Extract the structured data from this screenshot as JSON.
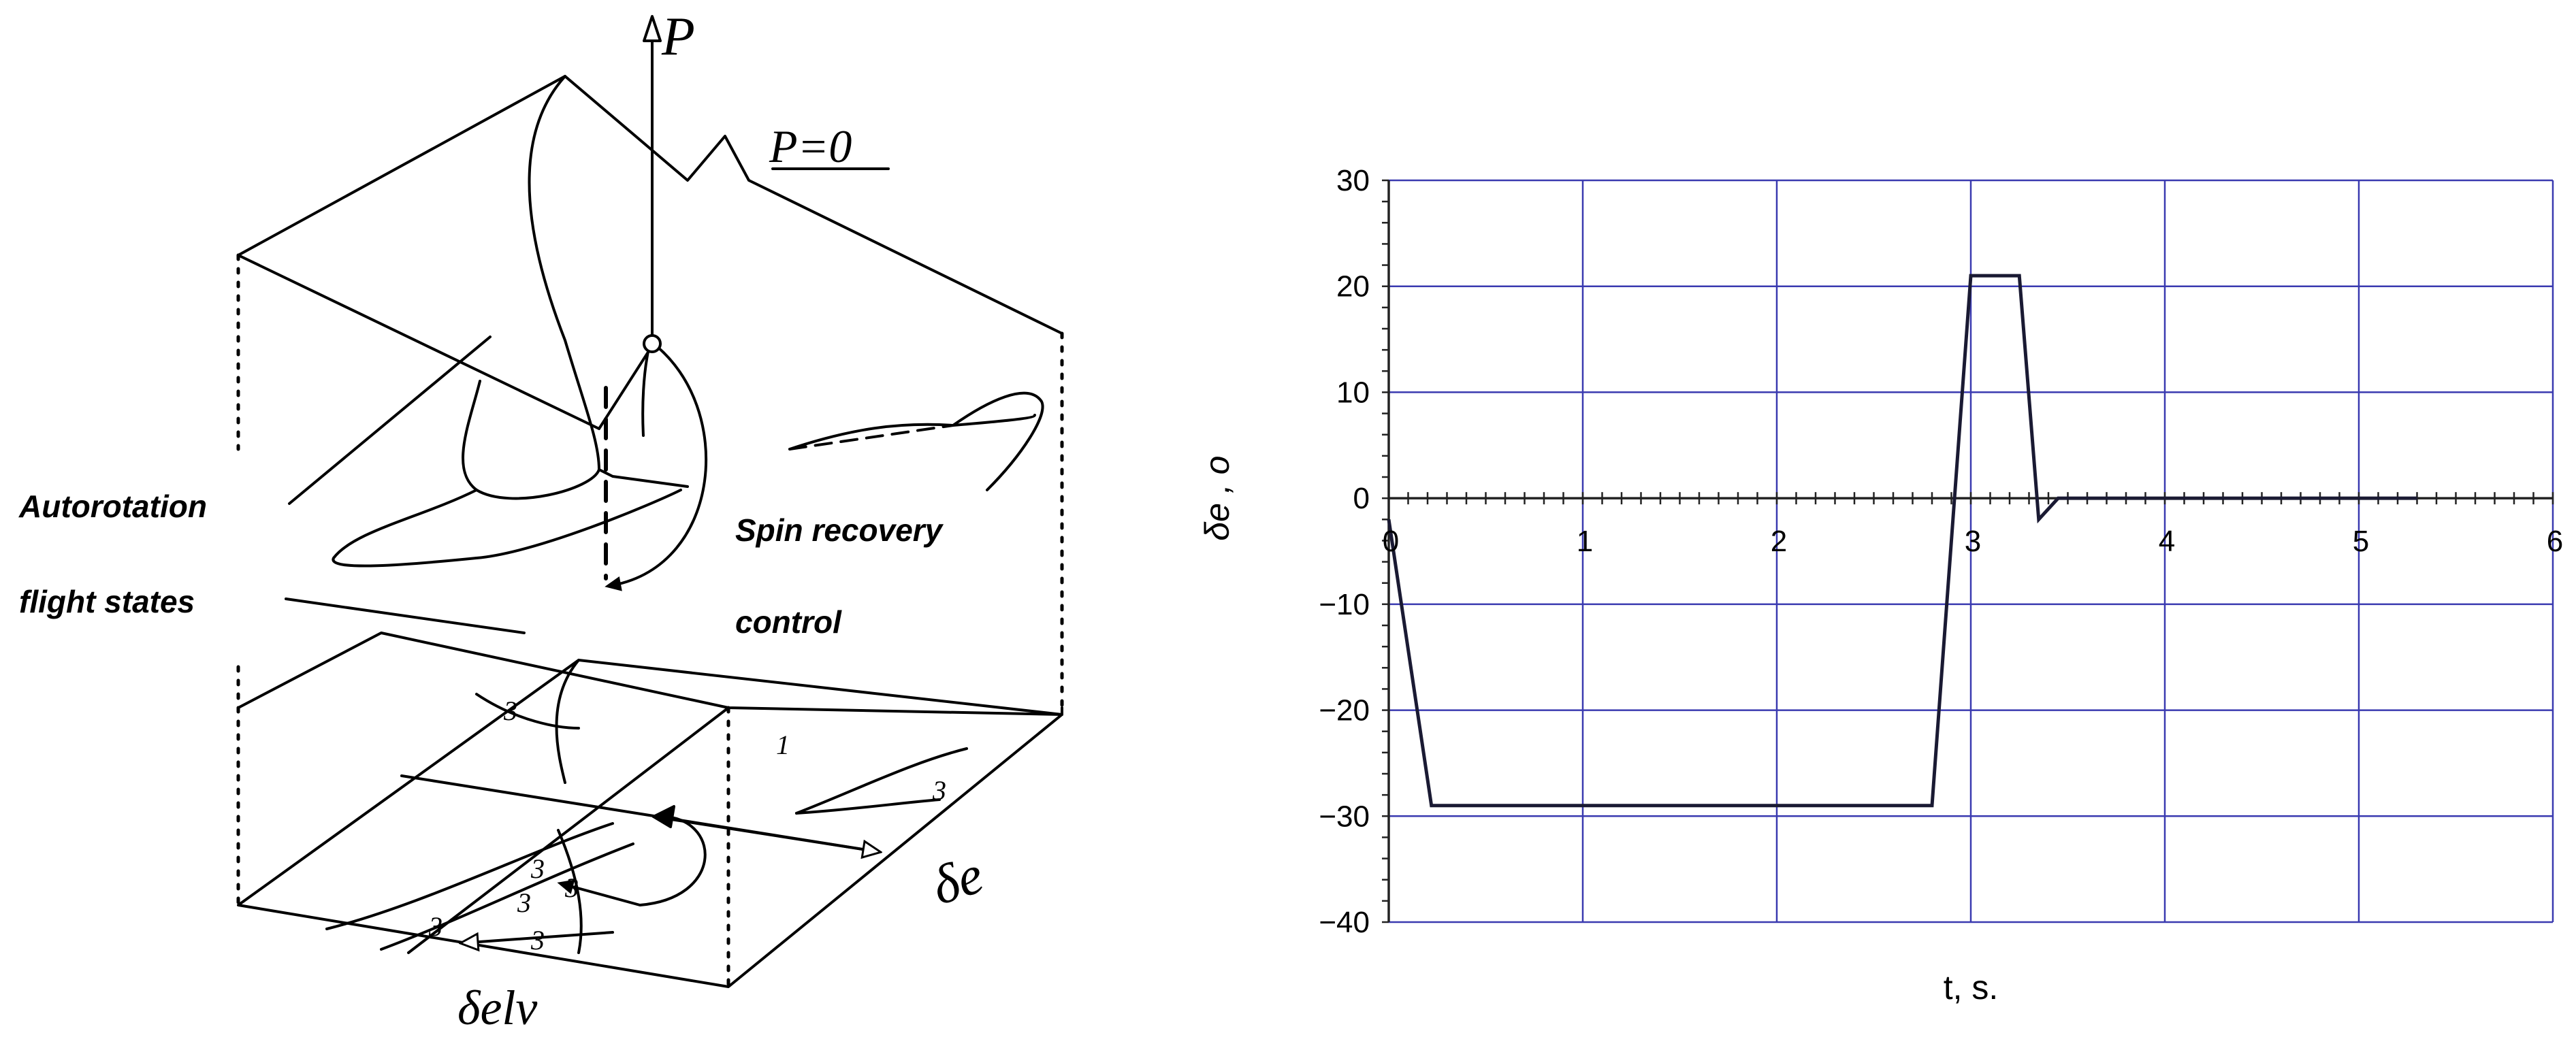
{
  "left_figure": {
    "axis_label": "P",
    "surface_label": "P=0",
    "autorotation_line1": "Autorotation",
    "autorotation_line2": "flight states",
    "recovery_line1": "Spin recovery",
    "recovery_line2": "control",
    "axis_de": "δe",
    "axis_delv": "δelv",
    "branch_marks": [
      "3",
      "3",
      "3",
      "3",
      "3",
      "3",
      "3",
      "1"
    ]
  },
  "chart_data": {
    "type": "line",
    "title": "",
    "xlabel": "t, s.",
    "ylabel": "δe , o",
    "xlim": [
      0,
      6
    ],
    "ylim": [
      -40,
      30
    ],
    "xticks": [
      "0",
      "1",
      "2",
      "3",
      "4",
      "5",
      "6"
    ],
    "yticks": [
      "30",
      "20",
      "10",
      "0",
      "-10",
      "-20",
      "-30",
      "-40"
    ],
    "grid": true,
    "line_color": "#1a1a33",
    "grid_color": "#3a3ab0",
    "series": [
      {
        "name": "",
        "x": [
          0.0,
          0.22,
          2.8,
          3.0,
          3.25,
          3.35,
          3.45,
          5.3
        ],
        "y": [
          -2,
          -29,
          -29,
          21,
          21,
          -2,
          0,
          0
        ]
      }
    ]
  }
}
